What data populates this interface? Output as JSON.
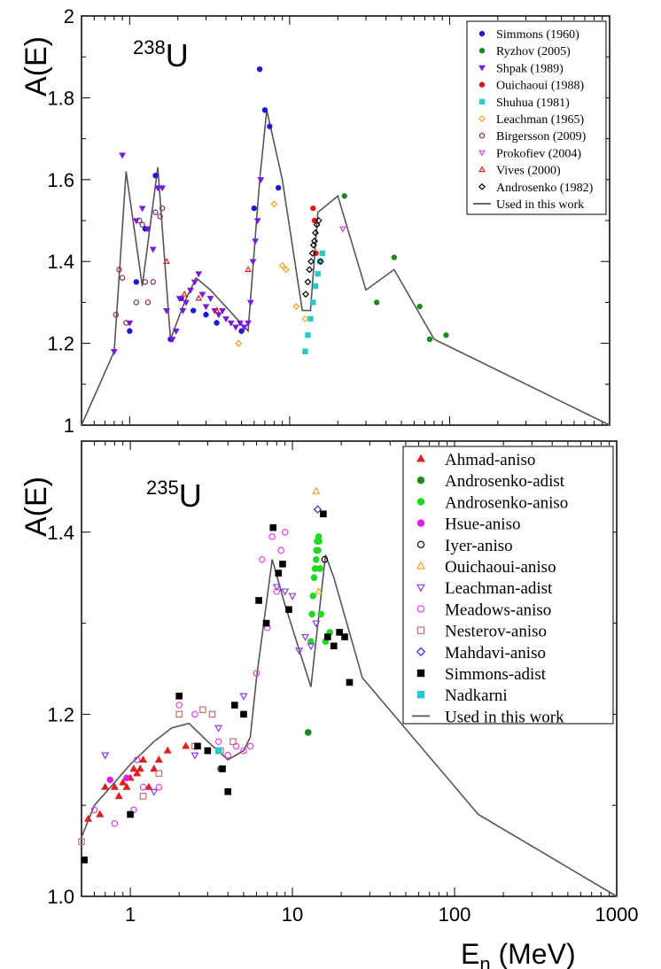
{
  "chart_data": [
    {
      "type": "scatter",
      "panel": "top",
      "isotope_mass": "238",
      "isotope_symbol": "U",
      "ylabel": "A(E)",
      "xscale": "log",
      "xlim": [
        0.5,
        1000
      ],
      "ylim": [
        1.0,
        2.0
      ],
      "yticks": [
        1,
        1.2,
        1.4,
        1.6,
        1.8,
        2
      ],
      "ytick_labels": [
        "1",
        "1.2",
        "1.4",
        "1.6",
        "1.8",
        "2"
      ],
      "legend_position": "top-right",
      "curve": {
        "name": "Used in this work",
        "color": "#555555",
        "x": [
          0.5,
          0.8,
          0.95,
          1.2,
          1.5,
          1.8,
          2.2,
          2.6,
          3.2,
          5.5,
          6.5,
          7.2,
          9,
          12,
          13.5,
          15,
          20,
          30,
          45,
          80,
          1000
        ],
        "y": [
          1.0,
          1.18,
          1.62,
          1.34,
          1.63,
          1.21,
          1.3,
          1.36,
          1.33,
          1.23,
          1.6,
          1.77,
          1.6,
          1.28,
          1.28,
          1.52,
          1.56,
          1.33,
          1.38,
          1.21,
          1.0
        ]
      },
      "series": [
        {
          "name": "Simmons (1960)",
          "marker": "circle-filled",
          "color": "#1a1ad6",
          "x": [
            1.0,
            1.1,
            1.25,
            1.45,
            1.8,
            2.1,
            2.5,
            3.0,
            3.5,
            5.0,
            6.0,
            6.5,
            7.0,
            7.5,
            8.5
          ],
          "y": [
            1.23,
            1.35,
            1.48,
            1.61,
            1.21,
            1.31,
            1.28,
            1.27,
            1.25,
            1.23,
            1.53,
            1.87,
            1.77,
            1.73,
            1.58
          ]
        },
        {
          "name": "Ryzhov (2005)",
          "marker": "circle-filled",
          "color": "#1a8a1a",
          "x": [
            22,
            35,
            45,
            65,
            75,
            95
          ],
          "y": [
            1.56,
            1.3,
            1.41,
            1.29,
            1.21,
            1.22
          ]
        },
        {
          "name": "Shpak (1989)",
          "marker": "triangle-down-filled",
          "color": "#7a1ad6",
          "x": [
            0.8,
            0.9,
            1.0,
            1.1,
            1.2,
            1.3,
            1.4,
            1.5,
            1.6,
            1.7,
            1.85,
            1.95,
            2.05,
            2.15,
            2.25,
            2.4,
            2.55,
            2.7,
            2.85,
            3.0,
            3.2,
            3.4,
            3.6,
            3.8,
            4.0,
            4.3,
            4.6,
            4.9,
            5.2,
            5.5,
            5.7,
            5.9,
            6.1,
            6.3,
            6.6
          ],
          "y": [
            1.18,
            1.66,
            1.25,
            1.5,
            1.53,
            1.48,
            1.43,
            1.58,
            1.58,
            1.28,
            1.21,
            1.23,
            1.31,
            1.28,
            1.3,
            1.33,
            1.35,
            1.37,
            1.32,
            1.29,
            1.31,
            1.28,
            1.27,
            1.28,
            1.26,
            1.25,
            1.24,
            1.25,
            1.24,
            1.25,
            1.3,
            1.4,
            1.45,
            1.5,
            1.6
          ]
        },
        {
          "name": "Ouichaoui (1988)",
          "marker": "circle-filled",
          "color": "#e01a1a",
          "x": [
            14.0,
            14.3,
            14.6
          ],
          "y": [
            1.53,
            1.5,
            1.42
          ]
        },
        {
          "name": "Shuhua (1981)",
          "marker": "square-filled",
          "color": "#2ac8c8",
          "x": [
            12.5,
            13.0,
            13.5,
            14.0,
            14.5,
            15.0,
            15.5,
            16.0
          ],
          "y": [
            1.18,
            1.22,
            1.26,
            1.3,
            1.34,
            1.37,
            1.4,
            1.42
          ]
        },
        {
          "name": "Leachman (1965)",
          "marker": "diamond-open",
          "color": "#f0a020",
          "x": [
            4.8,
            8.0,
            9.0,
            9.5,
            11.0,
            12.5
          ],
          "y": [
            1.2,
            1.54,
            1.39,
            1.38,
            1.29,
            1.26
          ]
        },
        {
          "name": "Birgersson (2009)",
          "marker": "circle-open",
          "color": "#7a2a6a",
          "x": [
            0.82,
            0.86,
            0.9,
            0.95,
            1.1,
            1.15,
            1.2,
            1.25,
            1.3,
            1.4,
            1.45,
            1.55,
            1.6
          ],
          "y": [
            1.27,
            1.38,
            1.36,
            1.25,
            1.3,
            1.5,
            1.49,
            1.35,
            1.3,
            1.35,
            1.52,
            1.51,
            1.53
          ]
        },
        {
          "name": "Prokofiev (2004)",
          "marker": "triangle-down-open",
          "color": "#e040e0",
          "x": [
            21.5
          ],
          "y": [
            1.48
          ]
        },
        {
          "name": "Vives (2000)",
          "marker": "triangle-up-open",
          "color": "#e02020",
          "x": [
            1.7,
            2.2,
            2.7,
            3.5,
            5.5
          ],
          "y": [
            1.4,
            1.32,
            1.31,
            1.28,
            1.38
          ]
        },
        {
          "name": "Androsenko (1982)",
          "marker": "diamond-open",
          "color": "#000000",
          "x": [
            12.6,
            13.0,
            13.3,
            13.6,
            13.9,
            14.1,
            14.3,
            14.5,
            14.8,
            15.2,
            15.6
          ],
          "y": [
            1.32,
            1.35,
            1.38,
            1.4,
            1.42,
            1.44,
            1.45,
            1.47,
            1.49,
            1.5,
            1.4
          ]
        }
      ]
    },
    {
      "type": "scatter",
      "panel": "bottom",
      "isotope_mass": "235",
      "isotope_symbol": "U",
      "ylabel": "A(E)",
      "xlabel_main": "E",
      "xlabel_sub": "n",
      "xlabel_unit": " (MeV)",
      "xscale": "log",
      "xlim": [
        0.5,
        1000
      ],
      "ylim": [
        1.0,
        1.5
      ],
      "yticks": [
        1.0,
        1.2,
        1.4
      ],
      "ytick_labels": [
        "1.0",
        "1.2",
        "1.4"
      ],
      "xticks": [
        1,
        10,
        100,
        1000
      ],
      "xtick_labels": [
        "1",
        "10",
        "100",
        "1000"
      ],
      "legend_position": "top-right",
      "curve": {
        "name": "Used in this work",
        "color": "#555555",
        "x": [
          0.5,
          0.6,
          0.8,
          1.0,
          1.4,
          1.8,
          2.3,
          3.0,
          4.0,
          5.0,
          5.5,
          6.0,
          7.5,
          9.0,
          13.0,
          16.0,
          18.0,
          27.0,
          140.0,
          1000.0
        ],
        "y": [
          1.065,
          1.1,
          1.125,
          1.145,
          1.17,
          1.185,
          1.19,
          1.17,
          1.15,
          1.16,
          1.175,
          1.24,
          1.37,
          1.32,
          1.23,
          1.375,
          1.35,
          1.24,
          1.09,
          1.0
        ]
      },
      "series": [
        {
          "name": "Ahmad-aniso",
          "marker": "triangle-up-filled",
          "color": "#e02020",
          "x": [
            0.55,
            0.65,
            0.7,
            0.8,
            0.85,
            0.9,
            0.95,
            1.0,
            1.05,
            1.1,
            1.15,
            1.2,
            1.3,
            1.4,
            1.5,
            1.7,
            2.2
          ],
          "y": [
            1.085,
            1.09,
            1.12,
            1.12,
            1.11,
            1.125,
            1.12,
            1.13,
            1.14,
            1.135,
            1.14,
            1.15,
            1.12,
            1.14,
            1.15,
            1.16,
            1.165
          ]
        },
        {
          "name": "Androsenko-adist",
          "marker": "circle-filled",
          "color": "#1a8a1a",
          "x": [
            3.6,
            12.5
          ],
          "y": [
            1.14,
            1.18
          ]
        },
        {
          "name": "Androsenko-aniso",
          "marker": "circle-filled",
          "color": "#20d820",
          "x": [
            13.0,
            13.2,
            13.4,
            13.6,
            13.8,
            14.0,
            14.1,
            14.2,
            14.3,
            14.4,
            14.5,
            14.6,
            14.8,
            15.0,
            16.0,
            17.0
          ],
          "y": [
            1.28,
            1.31,
            1.33,
            1.35,
            1.36,
            1.37,
            1.38,
            1.39,
            1.39,
            1.38,
            1.395,
            1.39,
            1.36,
            1.31,
            1.28,
            1.29
          ]
        },
        {
          "name": "Hsue-aniso",
          "marker": "circle-filled",
          "color": "#e020e0",
          "x": [
            0.75,
            0.95
          ],
          "y": [
            1.128,
            1.13
          ]
        },
        {
          "name": "Iyer-aniso",
          "marker": "circle-open",
          "color": "#000000",
          "x": [
            3.0,
            15.8
          ],
          "y": [
            1.16,
            1.37
          ]
        },
        {
          "name": "Ouichaoui-aniso",
          "marker": "triangle-up-open",
          "color": "#f0a020",
          "x": [
            14.0,
            14.5
          ],
          "y": [
            1.445,
            1.335
          ]
        },
        {
          "name": "Leachman-adist",
          "marker": "triangle-down-open",
          "color": "#8a3ae0",
          "x": [
            0.7,
            1.4,
            2.5,
            3.5,
            5.0,
            8.0,
            9.0,
            10.0,
            11.0,
            12.0,
            13.0,
            14.0
          ],
          "y": [
            1.155,
            1.115,
            1.155,
            1.185,
            1.22,
            1.34,
            1.335,
            1.33,
            1.27,
            1.285,
            1.275,
            1.3
          ]
        },
        {
          "name": "Meadows-aniso",
          "marker": "circle-open",
          "color": "#e040e0",
          "x": [
            0.6,
            0.8,
            1.05,
            1.1,
            1.2,
            1.5,
            2.0,
            2.5,
            3.0,
            3.5,
            4.0,
            4.5,
            5.0,
            5.5,
            6.0,
            6.5,
            7.0,
            7.5,
            8.0,
            8.5,
            9.0
          ],
          "y": [
            1.095,
            1.08,
            1.095,
            1.15,
            1.12,
            1.12,
            1.21,
            1.2,
            1.16,
            1.17,
            1.155,
            1.165,
            1.16,
            1.165,
            1.245,
            1.37,
            1.295,
            1.395,
            1.335,
            1.38,
            1.4
          ]
        },
        {
          "name": "Nesterov-aniso",
          "marker": "square-open",
          "color": "#c07070",
          "x": [
            0.5,
            1.2,
            1.5,
            2.0,
            2.5,
            2.8,
            3.2,
            3.6,
            4.3
          ],
          "y": [
            1.06,
            1.11,
            1.135,
            1.2,
            1.165,
            1.205,
            1.2,
            1.16,
            1.17
          ]
        },
        {
          "name": "Mahdavi-aniso",
          "marker": "diamond-open",
          "color": "#2a2ad6",
          "x": [
            14.3
          ],
          "y": [
            1.425
          ]
        },
        {
          "name": "Simmons-adist",
          "marker": "square-filled",
          "color": "#000000",
          "x": [
            0.52,
            1.0,
            2.0,
            2.6,
            3.0,
            3.7,
            4.0,
            4.4,
            5.0,
            6.2,
            6.9,
            7.6,
            8.2,
            8.7,
            9.5,
            15.5,
            16.5,
            18.0,
            19.5,
            21.0,
            22.5
          ],
          "y": [
            1.04,
            1.09,
            1.22,
            1.165,
            1.16,
            1.14,
            1.115,
            1.21,
            1.2,
            1.325,
            1.3,
            1.405,
            1.355,
            1.365,
            1.315,
            1.42,
            1.285,
            1.275,
            1.29,
            1.285,
            1.235
          ]
        },
        {
          "name": "Nadkarni",
          "marker": "square-filled",
          "color": "#2ac8c8",
          "x": [
            3.5
          ],
          "y": [
            1.16
          ]
        }
      ]
    }
  ]
}
